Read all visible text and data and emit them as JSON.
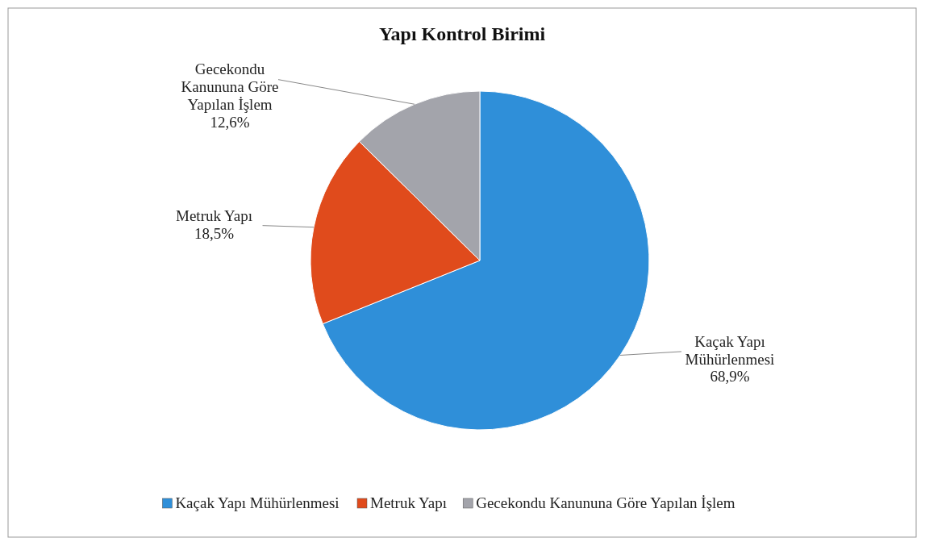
{
  "chart_data": {
    "type": "pie",
    "title": "Yapı Kontrol Birimi",
    "categories": [
      "Kaçak Yapı Mühürlenmesi",
      "Metruk Yapı",
      "Gecekondu Kanununa Göre Yapılan İşlem"
    ],
    "values": [
      68.9,
      18.5,
      12.6
    ],
    "colors": [
      "#2f8fd9",
      "#e04b1c",
      "#a3a4ab"
    ],
    "value_labels": [
      "68,9%",
      "18,5%",
      "12,6%"
    ],
    "legend": "bottom"
  }
}
